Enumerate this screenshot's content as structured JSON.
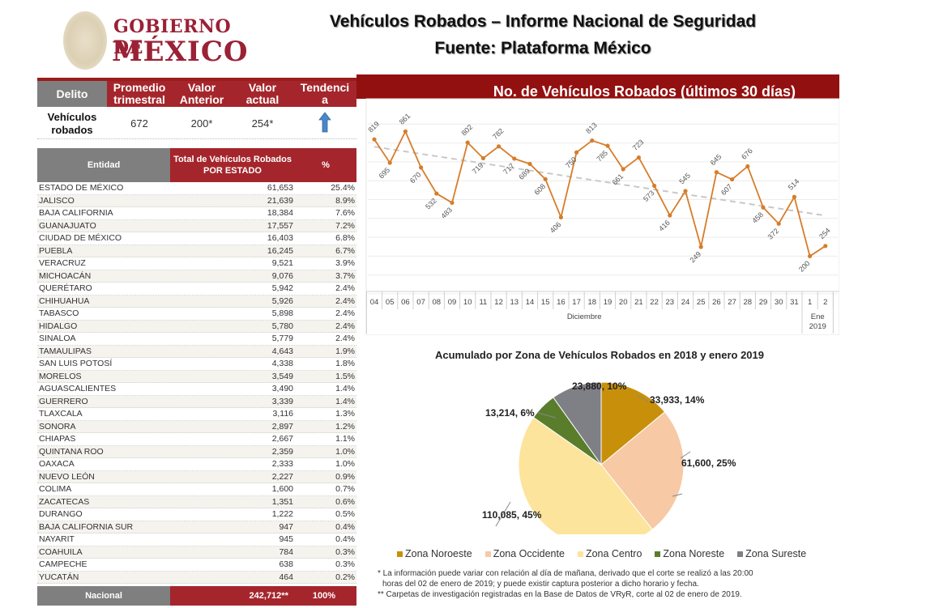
{
  "header": {
    "logo_line1": "GOBIERNO DE",
    "logo_line2": "MÉXICO",
    "title": "Vehículos Robados – Informe Nacional de Seguridad",
    "subtitle": "Fuente: Plataforma México"
  },
  "summary": {
    "headers": [
      "Delito",
      "Promedio trimestral",
      "Valor Anterior",
      "Valor actual",
      "Tendencia"
    ],
    "row": {
      "delito": "Vehículos robados",
      "promedio_trimestral": "672",
      "valor_anterior": "200*",
      "valor_actual": "254*",
      "tendencia_icon": "arrow-up-icon",
      "tendencia_color": "#4a86c8"
    }
  },
  "states_table": {
    "headers": [
      "Entidad",
      "Total de Vehículos Robados POR ESTADO",
      "%"
    ],
    "rows": [
      {
        "name": "ESTADO DE MÉXICO",
        "total": "61,653",
        "pct": "25.4%"
      },
      {
        "name": "JALISCO",
        "total": "21,639",
        "pct": "8.9%"
      },
      {
        "name": "BAJA CALIFORNIA",
        "total": "18,384",
        "pct": "7.6%"
      },
      {
        "name": "GUANAJUATO",
        "total": "17,557",
        "pct": "7.2%"
      },
      {
        "name": "CIUDAD DE MÉXICO",
        "total": "16,403",
        "pct": "6.8%"
      },
      {
        "name": "PUEBLA",
        "total": "16,245",
        "pct": "6.7%"
      },
      {
        "name": "VERACRUZ",
        "total": "9,521",
        "pct": "3.9%"
      },
      {
        "name": "MICHOACÁN",
        "total": "9,076",
        "pct": "3.7%"
      },
      {
        "name": "QUERÉTARO",
        "total": "5,942",
        "pct": "2.4%"
      },
      {
        "name": "CHIHUAHUA",
        "total": "5,926",
        "pct": "2.4%"
      },
      {
        "name": "TABASCO",
        "total": "5,898",
        "pct": "2.4%"
      },
      {
        "name": "HIDALGO",
        "total": "5,780",
        "pct": "2.4%"
      },
      {
        "name": "SINALOA",
        "total": "5,779",
        "pct": "2.4%"
      },
      {
        "name": "TAMAULIPAS",
        "total": "4,643",
        "pct": "1.9%"
      },
      {
        "name": "SAN LUIS POTOSÍ",
        "total": "4,338",
        "pct": "1.8%"
      },
      {
        "name": "MORELOS",
        "total": "3,549",
        "pct": "1.5%"
      },
      {
        "name": "AGUASCALIENTES",
        "total": "3,490",
        "pct": "1.4%"
      },
      {
        "name": "GUERRERO",
        "total": "3,339",
        "pct": "1.4%"
      },
      {
        "name": "TLAXCALA",
        "total": "3,116",
        "pct": "1.3%"
      },
      {
        "name": "SONORA",
        "total": "2,897",
        "pct": "1.2%"
      },
      {
        "name": "CHIAPAS",
        "total": "2,667",
        "pct": "1.1%"
      },
      {
        "name": "QUINTANA ROO",
        "total": "2,359",
        "pct": "1.0%"
      },
      {
        "name": "OAXACA",
        "total": "2,333",
        "pct": "1.0%"
      },
      {
        "name": "NUEVO LEÓN",
        "total": "2,227",
        "pct": "0.9%"
      },
      {
        "name": "COLIMA",
        "total": "1,600",
        "pct": "0.7%"
      },
      {
        "name": "ZACATECAS",
        "total": "1,351",
        "pct": "0.6%"
      },
      {
        "name": "DURANGO",
        "total": "1,222",
        "pct": "0.5%"
      },
      {
        "name": "BAJA CALIFORNIA SUR",
        "total": "947",
        "pct": "0.4%"
      },
      {
        "name": "NAYARIT",
        "total": "945",
        "pct": "0.4%"
      },
      {
        "name": "COAHUILA",
        "total": "784",
        "pct": "0.3%"
      },
      {
        "name": "CAMPECHE",
        "total": "638",
        "pct": "0.3%"
      },
      {
        "name": "YUCATÁN",
        "total": "464",
        "pct": "0.2%"
      }
    ],
    "footer": {
      "label": "Nacional",
      "total": "242,712**",
      "pct": "100%"
    }
  },
  "chart_data": [
    {
      "type": "line",
      "title": "No. de Vehículos Robados (últimos 30 días)",
      "x": [
        "04",
        "05",
        "06",
        "07",
        "08",
        "09",
        "10",
        "11",
        "12",
        "13",
        "14",
        "15",
        "16",
        "17",
        "18",
        "19",
        "20",
        "21",
        "22",
        "23",
        "24",
        "25",
        "26",
        "27",
        "28",
        "29",
        "30",
        "31",
        "1",
        "2"
      ],
      "x_groups": [
        {
          "label": "Diciembre",
          "span": 28
        },
        {
          "label": "Ene 2019",
          "span": 2
        }
      ],
      "series": [
        {
          "name": "Vehículos robados",
          "color": "#d67d2a",
          "values": [
            819,
            695,
            861,
            670,
            532,
            483,
            802,
            719,
            782,
            717,
            689,
            608,
            406,
            750,
            813,
            785,
            661,
            723,
            573,
            416,
            545,
            249,
            645,
            607,
            676,
            458,
            372,
            514,
            200,
            254
          ]
        },
        {
          "name": "Tendencia lineal",
          "color": "#c8c8c8",
          "style": "dashed",
          "start": 780,
          "end": 415
        }
      ],
      "xlabel": "",
      "ylabel": "",
      "ylim": [
        0,
        900
      ],
      "grid": true,
      "legend": "none"
    },
    {
      "type": "pie",
      "title": "Acumulado por Zona de Vehículos Robados en 2018 y enero 2019",
      "categories": [
        "Zona Noroeste",
        "Zona Occidente",
        "Zona Centro",
        "Zona Noreste",
        "Zona Sureste"
      ],
      "values": [
        33933,
        61600,
        110085,
        13214,
        23880
      ],
      "percents": [
        14,
        25,
        45,
        6,
        10
      ],
      "labels": [
        "33,933, 14%",
        "61,600, 25%",
        "110,085, 45%",
        "13,214, 6%",
        "23,880, 10%"
      ],
      "colors": [
        "#c8900a",
        "#f7c9a4",
        "#fde49c",
        "#5a7d2c",
        "#7f7f86"
      ],
      "legend": "bottom"
    }
  ],
  "notes": {
    "line1": "* La información puede variar con relación al día de mañana, derivado que el corte se realizó a las 20:00",
    "line2": "horas del 02 de enero de 2019; y puede existir captura posterior a dicho horario y fecha.",
    "line3": "** Carpetas de investigación registradas en la Base de Datos de VRyR, corte al 02 de enero de 2019."
  },
  "colors": {
    "brand_red": "#a4262c",
    "title_bar": "#931010",
    "header_gray": "#7f7f7f"
  }
}
